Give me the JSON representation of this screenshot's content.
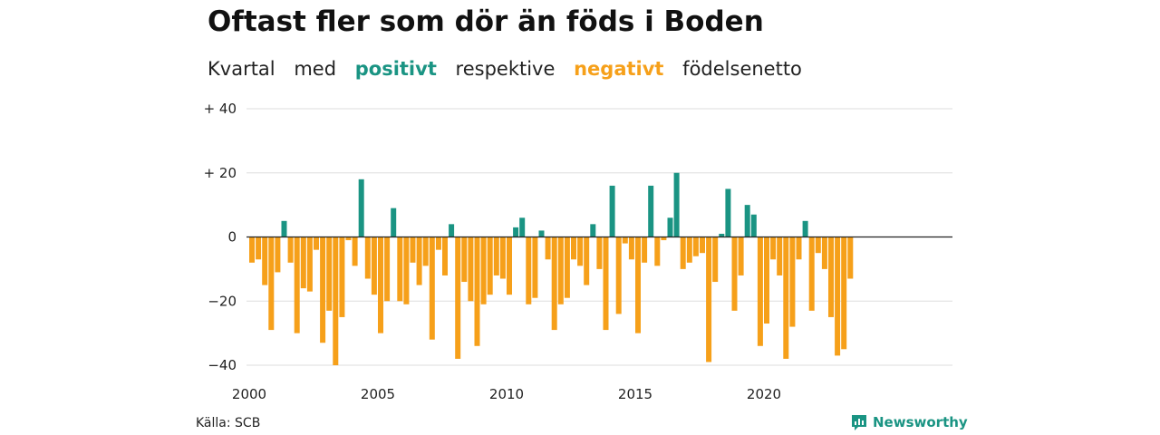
{
  "title": "Oftast fler som dör än föds i Boden",
  "subtitle": {
    "w1": "Kvartal",
    "w2": "med",
    "positive_word": "positivt",
    "w3": "respektive",
    "negative_word": "negativt",
    "w4": "födelsenetto"
  },
  "source": "Källa: SCB",
  "brand": "Newsworthy",
  "colors": {
    "positive": "#1a9483",
    "negative": "#f6a01a",
    "grid": "#dddddd",
    "zero": "#222222"
  },
  "chart_data": {
    "type": "bar",
    "title": "Oftast fler som dör än föds i Boden",
    "xlabel": "",
    "ylabel": "",
    "ylim": [
      -40,
      40
    ],
    "yticks": [
      {
        "value": 40,
        "label": "+ 40"
      },
      {
        "value": 20,
        "label": "+ 20"
      },
      {
        "value": 0,
        "label": "0"
      },
      {
        "value": -20,
        "label": "−20"
      },
      {
        "value": -40,
        "label": "−40"
      }
    ],
    "xticks": [
      {
        "value": 2000,
        "label": "2000"
      },
      {
        "value": 2005,
        "label": "2005"
      },
      {
        "value": 2010,
        "label": "2010"
      },
      {
        "value": 2015,
        "label": "2015"
      },
      {
        "value": 2020,
        "label": "2020"
      }
    ],
    "grid": true,
    "start_year": 2000,
    "values": [
      -8,
      -7,
      -15,
      -29,
      -11,
      5,
      -8,
      -30,
      -16,
      -17,
      -4,
      -33,
      -23,
      -40,
      -25,
      -1,
      -9,
      18,
      -13,
      -18,
      -30,
      -20,
      9,
      -20,
      -21,
      -8,
      -15,
      -9,
      -32,
      -4,
      -12,
      4,
      -38,
      -14,
      -20,
      -34,
      -21,
      -18,
      -12,
      -13,
      -18,
      3,
      6,
      -21,
      -19,
      2,
      -7,
      -29,
      -21,
      -19,
      -7,
      -9,
      -15,
      4,
      -10,
      -29,
      16,
      -24,
      -2,
      -7,
      -30,
      -8,
      16,
      -9,
      -1,
      6,
      20,
      -10,
      -8,
      -6,
      -5,
      -39,
      -14,
      1,
      15,
      -23,
      -12,
      10,
      7,
      -34,
      -27,
      -7,
      -12,
      -38,
      -28,
      -7,
      5,
      -23,
      -5,
      -10,
      -25,
      -37,
      -35,
      -13
    ]
  }
}
